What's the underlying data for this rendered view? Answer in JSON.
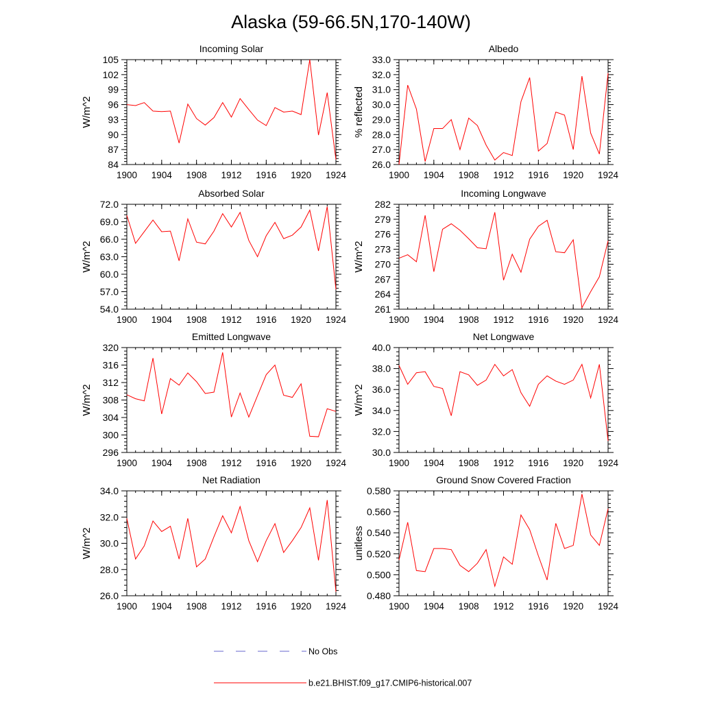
{
  "title": "Alaska (59-66.5N,170-140W)",
  "colors": {
    "model": "#ff0000",
    "obs": "#6666cc",
    "axis": "#000000"
  },
  "legend": {
    "obs_label": "No Obs",
    "model_label": "b.e21.BHIST.f09_g17.CMIP6-historical.007"
  },
  "chart_data": [
    {
      "type": "line",
      "title": "Incoming Solar",
      "ylabel": "W/m^2",
      "xlabel": "",
      "xlim": [
        1900,
        1924
      ],
      "ylim": [
        84,
        105
      ],
      "yticks": [
        84,
        87,
        90,
        93,
        96,
        99,
        102,
        105
      ],
      "ytick_labels": [
        "84",
        "87",
        "90",
        "93",
        "96",
        "99",
        "102",
        "105"
      ],
      "xticks": [
        1900,
        1904,
        1908,
        1912,
        1916,
        1920,
        1924
      ],
      "x": [
        1900,
        1901,
        1902,
        1903,
        1904,
        1905,
        1906,
        1907,
        1908,
        1909,
        1910,
        1911,
        1912,
        1913,
        1914,
        1915,
        1916,
        1917,
        1918,
        1919,
        1920,
        1921,
        1922,
        1923,
        1924
      ],
      "series": [
        {
          "name": "b.e21.BHIST.f09_g17.CMIP6-historical.007",
          "values": [
            96.0,
            95.8,
            96.4,
            94.7,
            94.6,
            94.7,
            88.3,
            96.1,
            93.2,
            91.9,
            93.4,
            96.4,
            93.5,
            97.2,
            95.0,
            92.9,
            91.8,
            95.4,
            94.5,
            94.7,
            94.0,
            105.0,
            89.9,
            98.4,
            85.0
          ]
        }
      ]
    },
    {
      "type": "line",
      "title": "Albedo",
      "ylabel": "% reflected",
      "xlabel": "",
      "xlim": [
        1900,
        1924
      ],
      "ylim": [
        26,
        33
      ],
      "yticks": [
        26,
        27,
        28,
        29,
        30,
        31,
        32,
        33
      ],
      "ytick_labels": [
        "26.0",
        "27.0",
        "28.0",
        "29.0",
        "30.0",
        "31.0",
        "32.0",
        "33.0"
      ],
      "xticks": [
        1900,
        1904,
        1908,
        1912,
        1916,
        1920,
        1924
      ],
      "x": [
        1900,
        1901,
        1902,
        1903,
        1904,
        1905,
        1906,
        1907,
        1908,
        1909,
        1910,
        1911,
        1912,
        1913,
        1914,
        1915,
        1916,
        1917,
        1918,
        1919,
        1920,
        1921,
        1922,
        1923,
        1924
      ],
      "series": [
        {
          "name": "b.e21.BHIST.f09_g17.CMIP6-historical.007",
          "values": [
            26.0,
            31.3,
            29.7,
            26.2,
            28.4,
            28.4,
            29.0,
            27.0,
            29.1,
            28.6,
            27.3,
            26.3,
            26.8,
            26.6,
            30.2,
            31.8,
            26.9,
            27.4,
            29.5,
            29.3,
            27.0,
            31.9,
            28.1,
            26.7,
            32.1
          ]
        }
      ]
    },
    {
      "type": "line",
      "title": "Absorbed Solar",
      "ylabel": "W/m^2",
      "xlabel": "",
      "xlim": [
        1900,
        1924
      ],
      "ylim": [
        54,
        72
      ],
      "yticks": [
        54,
        57,
        60,
        63,
        66,
        69,
        72
      ],
      "ytick_labels": [
        "54.0",
        "57.0",
        "60.0",
        "63.0",
        "66.0",
        "69.0",
        "72.0"
      ],
      "xticks": [
        1900,
        1904,
        1908,
        1912,
        1916,
        1920,
        1924
      ],
      "x": [
        1900,
        1901,
        1902,
        1903,
        1904,
        1905,
        1906,
        1907,
        1908,
        1909,
        1910,
        1911,
        1912,
        1913,
        1914,
        1915,
        1916,
        1917,
        1918,
        1919,
        1920,
        1921,
        1922,
        1923,
        1924
      ],
      "series": [
        {
          "name": "b.e21.BHIST.f09_g17.CMIP6-historical.007",
          "values": [
            70.1,
            65.3,
            67.3,
            69.3,
            67.3,
            67.4,
            62.3,
            69.5,
            65.5,
            65.2,
            67.4,
            70.4,
            68.1,
            70.6,
            65.8,
            63.0,
            66.6,
            68.9,
            66.1,
            66.7,
            68.1,
            71.0,
            64.0,
            71.6,
            57.4
          ]
        }
      ]
    },
    {
      "type": "line",
      "title": "Incoming Longwave",
      "ylabel": "W/m^2",
      "xlabel": "",
      "xlim": [
        1900,
        1924
      ],
      "ylim": [
        261,
        282
      ],
      "yticks": [
        261,
        264,
        267,
        270,
        273,
        276,
        279,
        282
      ],
      "ytick_labels": [
        "261",
        "264",
        "267",
        "270",
        "273",
        "276",
        "279",
        "282"
      ],
      "xticks": [
        1900,
        1904,
        1908,
        1912,
        1916,
        1920,
        1924
      ],
      "x": [
        1900,
        1901,
        1902,
        1903,
        1904,
        1905,
        1906,
        1907,
        1908,
        1909,
        1910,
        1911,
        1912,
        1913,
        1914,
        1915,
        1916,
        1917,
        1918,
        1919,
        1920,
        1921,
        1922,
        1923,
        1924
      ],
      "series": [
        {
          "name": "b.e21.BHIST.f09_g17.CMIP6-historical.007",
          "values": [
            271.2,
            271.9,
            270.5,
            279.8,
            268.5,
            277.0,
            278.1,
            276.8,
            275.1,
            273.3,
            273.1,
            280.4,
            266.8,
            272.0,
            268.4,
            275.0,
            277.6,
            278.8,
            272.5,
            272.3,
            274.9,
            261.3,
            264.5,
            267.5,
            274.7
          ]
        }
      ]
    },
    {
      "type": "line",
      "title": "Emitted Longwave",
      "ylabel": "W/m^2",
      "xlabel": "",
      "xlim": [
        1900,
        1924
      ],
      "ylim": [
        296,
        320
      ],
      "yticks": [
        296,
        300,
        304,
        308,
        312,
        316,
        320
      ],
      "ytick_labels": [
        "296",
        "300",
        "304",
        "308",
        "312",
        "316",
        "320"
      ],
      "xticks": [
        1900,
        1904,
        1908,
        1912,
        1916,
        1920,
        1924
      ],
      "x": [
        1900,
        1901,
        1902,
        1903,
        1904,
        1905,
        1906,
        1907,
        1908,
        1909,
        1910,
        1911,
        1912,
        1913,
        1914,
        1915,
        1916,
        1917,
        1918,
        1919,
        1920,
        1921,
        1922,
        1923,
        1924
      ],
      "series": [
        {
          "name": "b.e21.BHIST.f09_g17.CMIP6-historical.007",
          "values": [
            309.2,
            308.3,
            307.8,
            317.6,
            304.8,
            312.9,
            311.4,
            314.2,
            312.2,
            309.5,
            309.8,
            318.9,
            304.1,
            309.6,
            304.1,
            309.0,
            313.8,
            316.0,
            309.1,
            308.6,
            311.7,
            299.7,
            299.6,
            306.0,
            305.4
          ]
        }
      ]
    },
    {
      "type": "line",
      "title": "Net Longwave",
      "ylabel": "W/m^2",
      "xlabel": "",
      "xlim": [
        1900,
        1924
      ],
      "ylim": [
        30,
        40
      ],
      "yticks": [
        30,
        32,
        34,
        36,
        38,
        40
      ],
      "ytick_labels": [
        "30.0",
        "32.0",
        "34.0",
        "36.0",
        "38.0",
        "40.0"
      ],
      "xticks": [
        1900,
        1904,
        1908,
        1912,
        1916,
        1920,
        1924
      ],
      "x": [
        1900,
        1901,
        1902,
        1903,
        1904,
        1905,
        1906,
        1907,
        1908,
        1909,
        1910,
        1911,
        1912,
        1913,
        1914,
        1915,
        1916,
        1917,
        1918,
        1919,
        1920,
        1921,
        1922,
        1923,
        1924
      ],
      "series": [
        {
          "name": "b.e21.BHIST.f09_g17.CMIP6-historical.007",
          "values": [
            38.3,
            36.5,
            37.6,
            37.7,
            36.3,
            36.1,
            33.5,
            37.7,
            37.4,
            36.4,
            36.9,
            38.4,
            37.3,
            37.9,
            35.7,
            34.4,
            36.5,
            37.3,
            36.8,
            36.5,
            36.9,
            38.4,
            35.2,
            38.4,
            31.1
          ]
        }
      ]
    },
    {
      "type": "line",
      "title": "Net Radiation",
      "ylabel": "W/m^2",
      "xlabel": "",
      "xlim": [
        1900,
        1924
      ],
      "ylim": [
        26,
        34
      ],
      "yticks": [
        26,
        28,
        30,
        32,
        34
      ],
      "ytick_labels": [
        "26.0",
        "28.0",
        "30.0",
        "32.0",
        "34.0"
      ],
      "xticks": [
        1900,
        1904,
        1908,
        1912,
        1916,
        1920,
        1924
      ],
      "x": [
        1900,
        1901,
        1902,
        1903,
        1904,
        1905,
        1906,
        1907,
        1908,
        1909,
        1910,
        1911,
        1912,
        1913,
        1914,
        1915,
        1916,
        1917,
        1918,
        1919,
        1920,
        1921,
        1922,
        1923,
        1924
      ],
      "series": [
        {
          "name": "b.e21.BHIST.f09_g17.CMIP6-historical.007",
          "values": [
            31.9,
            28.8,
            29.8,
            31.7,
            30.9,
            31.3,
            28.8,
            31.9,
            28.2,
            28.8,
            30.5,
            32.1,
            30.8,
            32.8,
            30.2,
            28.6,
            30.2,
            31.5,
            29.3,
            30.2,
            31.2,
            32.7,
            28.7,
            33.3,
            26.3
          ]
        }
      ]
    },
    {
      "type": "line",
      "title": "Ground Snow Covered Fraction",
      "ylabel": "unitless",
      "xlabel": "",
      "xlim": [
        1900,
        1924
      ],
      "ylim": [
        0.48,
        0.58
      ],
      "yticks": [
        0.48,
        0.5,
        0.52,
        0.54,
        0.56,
        0.58
      ],
      "ytick_labels": [
        "0.480",
        "0.500",
        "0.520",
        "0.540",
        "0.560",
        "0.580"
      ],
      "xticks": [
        1900,
        1904,
        1908,
        1912,
        1916,
        1920,
        1924
      ],
      "x": [
        1900,
        1901,
        1902,
        1903,
        1904,
        1905,
        1906,
        1907,
        1908,
        1909,
        1910,
        1911,
        1912,
        1913,
        1914,
        1915,
        1916,
        1917,
        1918,
        1919,
        1920,
        1921,
        1922,
        1923,
        1924
      ],
      "series": [
        {
          "name": "b.e21.BHIST.f09_g17.CMIP6-historical.007",
          "values": [
            0.514,
            0.55,
            0.504,
            0.503,
            0.525,
            0.525,
            0.524,
            0.509,
            0.503,
            0.511,
            0.524,
            0.489,
            0.517,
            0.51,
            0.557,
            0.543,
            0.518,
            0.495,
            0.549,
            0.525,
            0.528,
            0.577,
            0.538,
            0.528,
            0.563
          ]
        }
      ]
    }
  ]
}
